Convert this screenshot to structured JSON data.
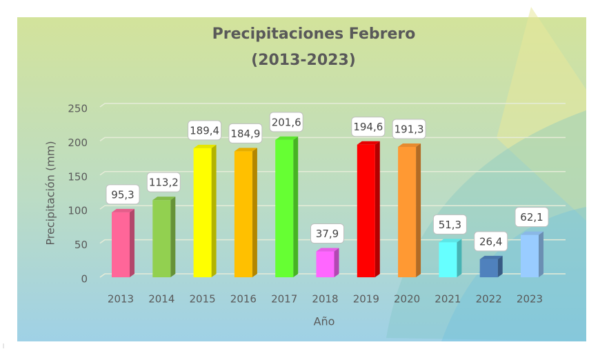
{
  "chart_data": {
    "type": "bar",
    "title": [
      "Precipitaciones Febrero",
      "(2013-2023)"
    ],
    "y_label": "Precipitación (mm)",
    "x_label": "Año",
    "categories": [
      "2013",
      "2014",
      "2015",
      "2016",
      "2017",
      "2018",
      "2019",
      "2020",
      "2021",
      "2022",
      "2023"
    ],
    "values": [
      95.3,
      113.2,
      189.4,
      184.9,
      201.6,
      37.9,
      194.6,
      191.3,
      51.3,
      26.4,
      62.1
    ],
    "value_labels": [
      "95,3",
      "113,2",
      "189,4",
      "184,9",
      "201,6",
      "37,9",
      "194,6",
      "191,3",
      "51,3",
      "26,4",
      "62,1"
    ],
    "colors": [
      "#ff6699",
      "#92d050",
      "#ffff00",
      "#ffc000",
      "#66ff33",
      "#ff66ff",
      "#ff0000",
      "#ff9933",
      "#66ffff",
      "#4f81bd",
      "#99ccff"
    ],
    "ylim": [
      0,
      250
    ],
    "yticks": [
      0,
      50,
      100,
      150,
      200,
      250
    ],
    "grid": true
  }
}
